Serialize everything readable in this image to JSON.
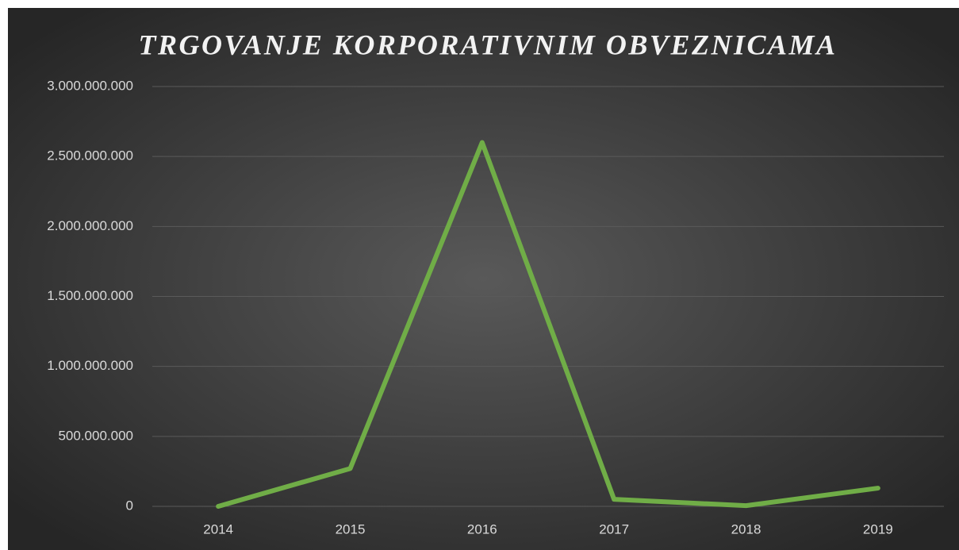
{
  "chart_data": {
    "type": "line",
    "title": "TRGOVANJE KORPORATIVNIM OBVEZNICAMA",
    "categories": [
      "2014",
      "2015",
      "2016",
      "2017",
      "2018",
      "2019"
    ],
    "series": [
      {
        "name": "Trgovanje",
        "color": "#70ad47",
        "values": [
          0,
          270000000,
          2600000000,
          50000000,
          5000000,
          130000000
        ]
      }
    ],
    "ylim": [
      0,
      3000000000
    ],
    "yticks": [
      0,
      {
        "value": 500000000,
        "label": "500.000.000"
      },
      {
        "value": 1000000000,
        "label": "1.000.000.000"
      },
      {
        "value": 1500000000,
        "label": "1.500.000.000"
      },
      {
        "value": 2000000000,
        "label": "2.000.000.000"
      },
      {
        "value": 2500000000,
        "label": "2.500.000.000"
      },
      {
        "value": 3000000000,
        "label": "3.000.000.000"
      }
    ],
    "grid": true,
    "legend": false
  }
}
